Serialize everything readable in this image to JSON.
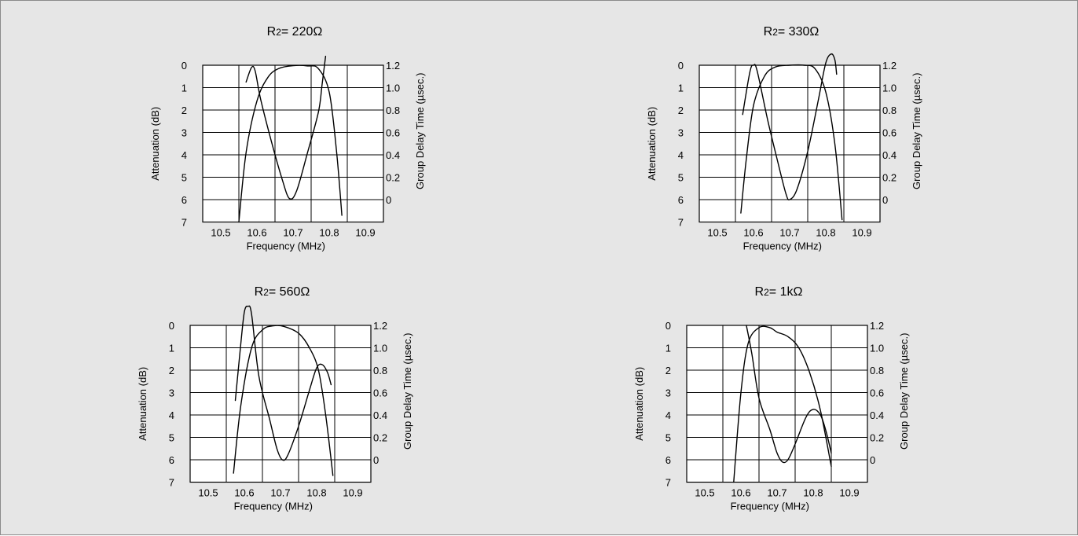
{
  "chart_data": [
    {
      "type": "line",
      "title": {
        "prefix": "R",
        "sub": "2",
        "value": "= 220Ω"
      },
      "xlabel": "Frequency (MHz)",
      "ylabel": "Attenuation (dB)",
      "y2label": "Group Delay Time (µsec.)",
      "xlim": [
        10.45,
        10.95
      ],
      "ylim": [
        0,
        7
      ],
      "y2lim": [
        -0.2,
        1.2
      ],
      "x_ticks": [
        "10.5",
        "10.6",
        "10.7",
        "10.8",
        "10.9"
      ],
      "y_ticks": [
        "0",
        "1",
        "2",
        "3",
        "4",
        "5",
        "6",
        "7"
      ],
      "y2_ticks": [
        "1.2",
        "1.0",
        "0.8",
        "0.6",
        "0.4",
        "0.2",
        "0"
      ],
      "grid": true,
      "series": [
        {
          "axis": "attenuation",
          "x": [
            10.55,
            10.57,
            10.6,
            10.63,
            10.66,
            10.7,
            10.74,
            10.77,
            10.8,
            10.82,
            10.835
          ],
          "y": [
            7.0,
            3.9,
            1.6,
            0.55,
            0.15,
            0.02,
            0.03,
            0.15,
            1.2,
            3.8,
            6.7
          ]
        },
        {
          "axis": "delay",
          "x": [
            10.57,
            10.585,
            10.595,
            10.61,
            10.64,
            10.67,
            10.69,
            10.71,
            10.74,
            10.77,
            10.78,
            10.79
          ],
          "y": [
            1.05,
            1.18,
            1.15,
            0.9,
            0.52,
            0.18,
            0.01,
            0.08,
            0.42,
            0.78,
            1.02,
            1.28
          ]
        }
      ]
    },
    {
      "type": "line",
      "title": {
        "prefix": "R",
        "sub": "2",
        "value": "= 330Ω"
      },
      "xlabel": "Frequency (MHz)",
      "ylabel": "Attenuation (dB)",
      "y2label": "Group Delay Time (µsec.)",
      "xlim": [
        10.45,
        10.95
      ],
      "ylim": [
        0,
        7
      ],
      "y2lim": [
        -0.2,
        1.2
      ],
      "x_ticks": [
        "10.5",
        "10.6",
        "10.7",
        "10.8",
        "10.9"
      ],
      "y_ticks": [
        "0",
        "1",
        "2",
        "3",
        "4",
        "5",
        "6",
        "7"
      ],
      "y2_ticks": [
        "1.2",
        "1.0",
        "0.8",
        "0.6",
        "0.4",
        "0.2",
        "0"
      ],
      "grid": true,
      "series": [
        {
          "axis": "attenuation",
          "x": [
            10.565,
            10.58,
            10.6,
            10.63,
            10.66,
            10.7,
            10.74,
            10.77,
            10.8,
            10.825,
            10.845
          ],
          "y": [
            6.6,
            4.2,
            1.8,
            0.5,
            0.08,
            0.0,
            0.0,
            0.15,
            1.2,
            3.5,
            6.9
          ]
        },
        {
          "axis": "delay",
          "x": [
            10.57,
            10.59,
            10.6,
            10.61,
            10.64,
            10.67,
            10.69,
            10.7,
            10.72,
            10.75,
            10.78,
            10.8,
            10.815,
            10.825,
            10.83
          ],
          "y": [
            0.76,
            1.14,
            1.2,
            1.15,
            0.7,
            0.3,
            0.05,
            0.0,
            0.09,
            0.43,
            0.9,
            1.22,
            1.3,
            1.25,
            1.12
          ]
        }
      ]
    },
    {
      "type": "line",
      "title": {
        "prefix": "R",
        "sub": "2",
        "value": "= 560Ω"
      },
      "xlabel": "Frequency (MHz)",
      "ylabel": "Attenuation (dB)",
      "y2label": "Group Delay Time (µsec.)",
      "xlim": [
        10.45,
        10.95
      ],
      "ylim": [
        0,
        7
      ],
      "y2lim": [
        -0.2,
        1.2
      ],
      "x_ticks": [
        "10.5",
        "10.6",
        "10.7",
        "10.8",
        "10.9"
      ],
      "y_ticks": [
        "0",
        "1",
        "2",
        "3",
        "4",
        "5",
        "6",
        "7"
      ],
      "y2_ticks": [
        "1.2",
        "1.0",
        "0.8",
        "0.6",
        "0.4",
        "0.2",
        "0"
      ],
      "grid": true,
      "series": [
        {
          "axis": "attenuation",
          "x": [
            10.57,
            10.59,
            10.62,
            10.65,
            10.68,
            10.71,
            10.75,
            10.78,
            10.805,
            10.825,
            10.845
          ],
          "y": [
            6.6,
            3.6,
            1.0,
            0.2,
            0.02,
            0.05,
            0.35,
            1.0,
            2.0,
            4.0,
            6.7
          ]
        },
        {
          "axis": "delay",
          "x": [
            10.575,
            10.59,
            10.6,
            10.61,
            10.62,
            10.64,
            10.67,
            10.69,
            10.705,
            10.72,
            10.75,
            10.78,
            10.8,
            10.815,
            10.83,
            10.84
          ],
          "y": [
            0.53,
            1.03,
            1.32,
            1.37,
            1.3,
            0.75,
            0.36,
            0.1,
            0.0,
            0.04,
            0.3,
            0.62,
            0.82,
            0.85,
            0.78,
            0.67
          ]
        }
      ]
    },
    {
      "type": "line",
      "title": {
        "prefix": "R",
        "sub": "2",
        "value": "= 1kΩ"
      },
      "xlabel": "Frequency (MHz)",
      "ylabel": "Attenuation (dB)",
      "y2label": "Group Delay Time (µsec.)",
      "xlim": [
        10.45,
        10.95
      ],
      "ylim": [
        0,
        7
      ],
      "y2lim": [
        -0.2,
        1.2
      ],
      "x_ticks": [
        "10.5",
        "10.6",
        "10.7",
        "10.8",
        "10.9"
      ],
      "y_ticks": [
        "0",
        "1",
        "2",
        "3",
        "4",
        "5",
        "6",
        "7"
      ],
      "y2_ticks": [
        "1.2",
        "1.0",
        "0.8",
        "0.6",
        "0.4",
        "0.2",
        "0"
      ],
      "grid": true,
      "series": [
        {
          "axis": "attenuation",
          "x": [
            10.58,
            10.6,
            10.62,
            10.65,
            10.68,
            10.7,
            10.73,
            10.76,
            10.79,
            10.82,
            10.85
          ],
          "y": [
            7.0,
            3.0,
            0.8,
            0.1,
            0.1,
            0.3,
            0.5,
            1.0,
            2.1,
            3.8,
            6.3
          ]
        },
        {
          "axis": "delay",
          "x": [
            10.615,
            10.63,
            10.65,
            10.68,
            10.7,
            10.715,
            10.73,
            10.75,
            10.78,
            10.8,
            10.82,
            10.835,
            10.85
          ],
          "y": [
            1.2,
            0.95,
            0.55,
            0.27,
            0.06,
            -0.02,
            0.0,
            0.14,
            0.38,
            0.45,
            0.4,
            0.26,
            0.06
          ]
        }
      ]
    }
  ]
}
